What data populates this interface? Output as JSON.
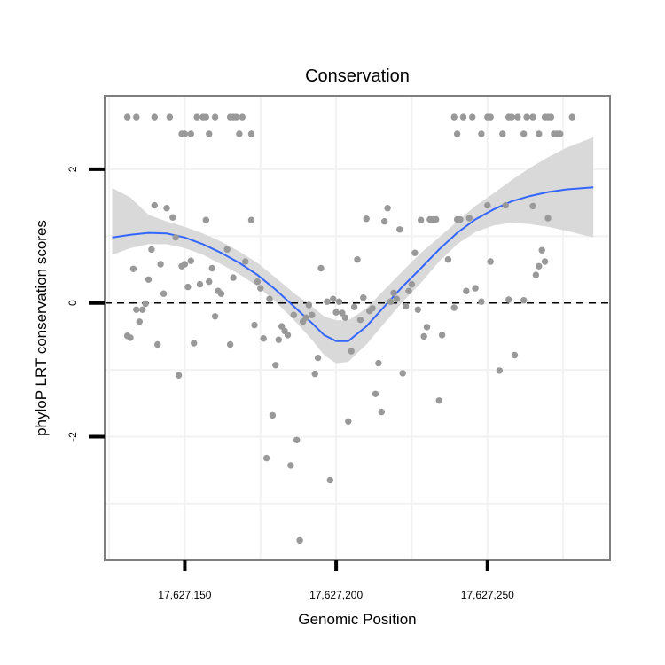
{
  "chart_data": {
    "type": "scatter",
    "title": "Conservation",
    "xlabel": "Genomic Position",
    "ylabel": "phyloP LRT conservation scores",
    "xlim": [
      17627123.5,
      17627290.5
    ],
    "ylim": [
      -3.85,
      3.1
    ],
    "grid": true,
    "x_ticks": [
      {
        "value": 17627150,
        "label": "17,627,150"
      },
      {
        "value": 17627200,
        "label": "17,627,200"
      },
      {
        "value": 17627250,
        "label": "17,627,250"
      }
    ],
    "y_ticks": [
      {
        "value": -2,
        "label": "-2"
      },
      {
        "value": 0,
        "label": "0"
      },
      {
        "value": 2,
        "label": "2"
      }
    ],
    "minor_y_gridlines": [
      -3,
      -1,
      1
    ],
    "minor_x_gridlines": [
      17627125,
      17627175,
      17627225,
      17627275
    ],
    "reference_line": {
      "y": 0,
      "style": "dashed"
    },
    "points": [
      [
        17627131,
        2.78
      ],
      [
        17627134,
        2.78
      ],
      [
        17627140,
        2.78
      ],
      [
        17627145,
        2.78
      ],
      [
        17627149,
        2.53
      ],
      [
        17627150,
        2.53
      ],
      [
        17627152,
        2.53
      ],
      [
        17627154,
        2.78
      ],
      [
        17627156,
        2.78
      ],
      [
        17627157,
        2.78
      ],
      [
        17627158,
        2.53
      ],
      [
        17627160,
        2.78
      ],
      [
        17627165,
        2.78
      ],
      [
        17627166,
        2.78
      ],
      [
        17627167,
        2.78
      ],
      [
        17627168,
        2.53
      ],
      [
        17627169,
        2.78
      ],
      [
        17627172,
        2.53
      ],
      [
        17627239,
        2.78
      ],
      [
        17627240,
        2.53
      ],
      [
        17627242,
        2.78
      ],
      [
        17627245,
        2.78
      ],
      [
        17627248,
        2.53
      ],
      [
        17627250,
        2.78
      ],
      [
        17627251,
        2.78
      ],
      [
        17627255,
        2.53
      ],
      [
        17627257,
        2.78
      ],
      [
        17627258,
        2.78
      ],
      [
        17627260,
        2.78
      ],
      [
        17627262,
        2.53
      ],
      [
        17627263,
        2.78
      ],
      [
        17627265,
        2.78
      ],
      [
        17627267,
        2.53
      ],
      [
        17627269,
        2.78
      ],
      [
        17627270,
        2.78
      ],
      [
        17627271,
        2.78
      ],
      [
        17627272,
        2.53
      ],
      [
        17627273,
        2.53
      ],
      [
        17627274,
        2.53
      ],
      [
        17627278,
        2.78
      ],
      [
        17627131,
        -0.49
      ],
      [
        17627132,
        -0.52
      ],
      [
        17627133,
        0.51
      ],
      [
        17627134,
        -0.1
      ],
      [
        17627135,
        -0.28
      ],
      [
        17627136,
        -0.1
      ],
      [
        17627137,
        -0.01
      ],
      [
        17627138,
        0.35
      ],
      [
        17627139,
        0.8
      ],
      [
        17627140,
        1.46
      ],
      [
        17627141,
        -0.62
      ],
      [
        17627142,
        0.58
      ],
      [
        17627143,
        0.14
      ],
      [
        17627144,
        1.42
      ],
      [
        17627146,
        1.28
      ],
      [
        17627147,
        0.98
      ],
      [
        17627148,
        -1.08
      ],
      [
        17627149,
        0.55
      ],
      [
        17627150,
        0.58
      ],
      [
        17627151,
        0.24
      ],
      [
        17627152,
        0.63
      ],
      [
        17627153,
        -0.6
      ],
      [
        17627155,
        0.28
      ],
      [
        17627157,
        1.24
      ],
      [
        17627158,
        0.32
      ],
      [
        17627159,
        0.52
      ],
      [
        17627160,
        -0.2
      ],
      [
        17627161,
        0.18
      ],
      [
        17627162,
        0.14
      ],
      [
        17627164,
        0.8
      ],
      [
        17627165,
        -0.62
      ],
      [
        17627166,
        0.38
      ],
      [
        17627170,
        0.62
      ],
      [
        17627172,
        1.24
      ],
      [
        17627173,
        -0.33
      ],
      [
        17627174,
        0.32
      ],
      [
        17627175,
        0.22
      ],
      [
        17627176,
        -0.53
      ],
      [
        17627177,
        -2.32
      ],
      [
        17627178,
        0.06
      ],
      [
        17627179,
        -1.68
      ],
      [
        17627180,
        -0.93
      ],
      [
        17627181,
        -0.55
      ],
      [
        17627182,
        -0.35
      ],
      [
        17627183,
        -0.42
      ],
      [
        17627184,
        -0.48
      ],
      [
        17627185,
        -2.43
      ],
      [
        17627186,
        -0.18
      ],
      [
        17627187,
        -2.05
      ],
      [
        17627188,
        -3.55
      ],
      [
        17627189,
        -0.28
      ],
      [
        17627190,
        -0.22
      ],
      [
        17627191,
        -0.03
      ],
      [
        17627192,
        -0.18
      ],
      [
        17627193,
        -1.06
      ],
      [
        17627194,
        -0.82
      ],
      [
        17627195,
        0.52
      ],
      [
        17627197,
        0.02
      ],
      [
        17627198,
        -2.65
      ],
      [
        17627199,
        0.06
      ],
      [
        17627200,
        -0.14
      ],
      [
        17627201,
        0.02
      ],
      [
        17627202,
        -0.15
      ],
      [
        17627203,
        -0.22
      ],
      [
        17627204,
        -1.77
      ],
      [
        17627205,
        -0.72
      ],
      [
        17627206,
        -0.06
      ],
      [
        17627207,
        0.65
      ],
      [
        17627208,
        -0.25
      ],
      [
        17627209,
        0.08
      ],
      [
        17627210,
        1.26
      ],
      [
        17627211,
        -0.12
      ],
      [
        17627212,
        -0.08
      ],
      [
        17627213,
        -1.36
      ],
      [
        17627214,
        -0.9
      ],
      [
        17627215,
        -1.63
      ],
      [
        17627216,
        1.22
      ],
      [
        17627217,
        1.42
      ],
      [
        17627218,
        0.02
      ],
      [
        17627219,
        0.15
      ],
      [
        17627220,
        0.06
      ],
      [
        17627221,
        1.1
      ],
      [
        17627222,
        -1.05
      ],
      [
        17627223,
        -0.05
      ],
      [
        17627224,
        0.18
      ],
      [
        17627225,
        0.28
      ],
      [
        17627226,
        0.75
      ],
      [
        17627227,
        -0.1
      ],
      [
        17627228,
        1.24
      ],
      [
        17627229,
        -0.5
      ],
      [
        17627230,
        -0.36
      ],
      [
        17627231,
        1.25
      ],
      [
        17627232,
        1.25
      ],
      [
        17627233,
        1.25
      ],
      [
        17627234,
        -1.46
      ],
      [
        17627235,
        -0.48
      ],
      [
        17627237,
        0.65
      ],
      [
        17627239,
        -0.07
      ],
      [
        17627240,
        1.25
      ],
      [
        17627241,
        1.25
      ],
      [
        17627243,
        0.18
      ],
      [
        17627244,
        1.27
      ],
      [
        17627246,
        0.22
      ],
      [
        17627248,
        0.02
      ],
      [
        17627250,
        1.46
      ],
      [
        17627251,
        0.62
      ],
      [
        17627254,
        -1.01
      ],
      [
        17627256,
        1.46
      ],
      [
        17627257,
        0.05
      ],
      [
        17627259,
        -0.78
      ],
      [
        17627262,
        0.04
      ],
      [
        17627265,
        1.45
      ],
      [
        17627266,
        0.42
      ],
      [
        17627267,
        0.55
      ],
      [
        17627268,
        0.79
      ],
      [
        17627269,
        0.62
      ],
      [
        17627270,
        1.27
      ]
    ],
    "smooth": {
      "method": "loess",
      "color": "#3366ff",
      "ribbon_color": "#d9d9d9",
      "x": [
        17627126,
        17627132,
        17627138,
        17627144,
        17627150,
        17627156,
        17627162,
        17627168,
        17627174,
        17627180,
        17627186,
        17627192,
        17627196,
        17627200,
        17627204,
        17627210,
        17627216,
        17627222,
        17627228,
        17627234,
        17627240,
        17627246,
        17627252,
        17627258,
        17627264,
        17627270,
        17627276,
        17627285
      ],
      "y": [
        0.98,
        1.02,
        1.05,
        1.04,
        0.98,
        0.88,
        0.75,
        0.6,
        0.42,
        0.2,
        -0.05,
        -0.3,
        -0.48,
        -0.57,
        -0.57,
        -0.35,
        -0.05,
        0.25,
        0.52,
        0.8,
        1.05,
        1.25,
        1.4,
        1.52,
        1.6,
        1.66,
        1.7,
        1.73
      ],
      "lower": [
        0.72,
        0.82,
        0.88,
        0.88,
        0.82,
        0.72,
        0.58,
        0.43,
        0.25,
        0.02,
        -0.25,
        -0.55,
        -0.78,
        -0.9,
        -0.88,
        -0.62,
        -0.3,
        0.02,
        0.3,
        0.62,
        0.88,
        1.06,
        1.16,
        1.2,
        1.18,
        1.14,
        1.08,
        0.98
      ],
      "upper": [
        1.72,
        1.58,
        1.32,
        1.22,
        1.14,
        1.04,
        0.92,
        0.77,
        0.6,
        0.38,
        0.15,
        -0.05,
        -0.2,
        -0.26,
        -0.26,
        -0.08,
        0.2,
        0.48,
        0.75,
        0.98,
        1.22,
        1.45,
        1.64,
        1.84,
        2.02,
        2.18,
        2.32,
        2.48
      ]
    }
  },
  "colors": {
    "points": "#999999",
    "line": "#3366ff",
    "ribbon": "#d9d9d9",
    "grid": "#f2f2f2",
    "border": "#7f7f7f",
    "dashed": "#000000"
  }
}
